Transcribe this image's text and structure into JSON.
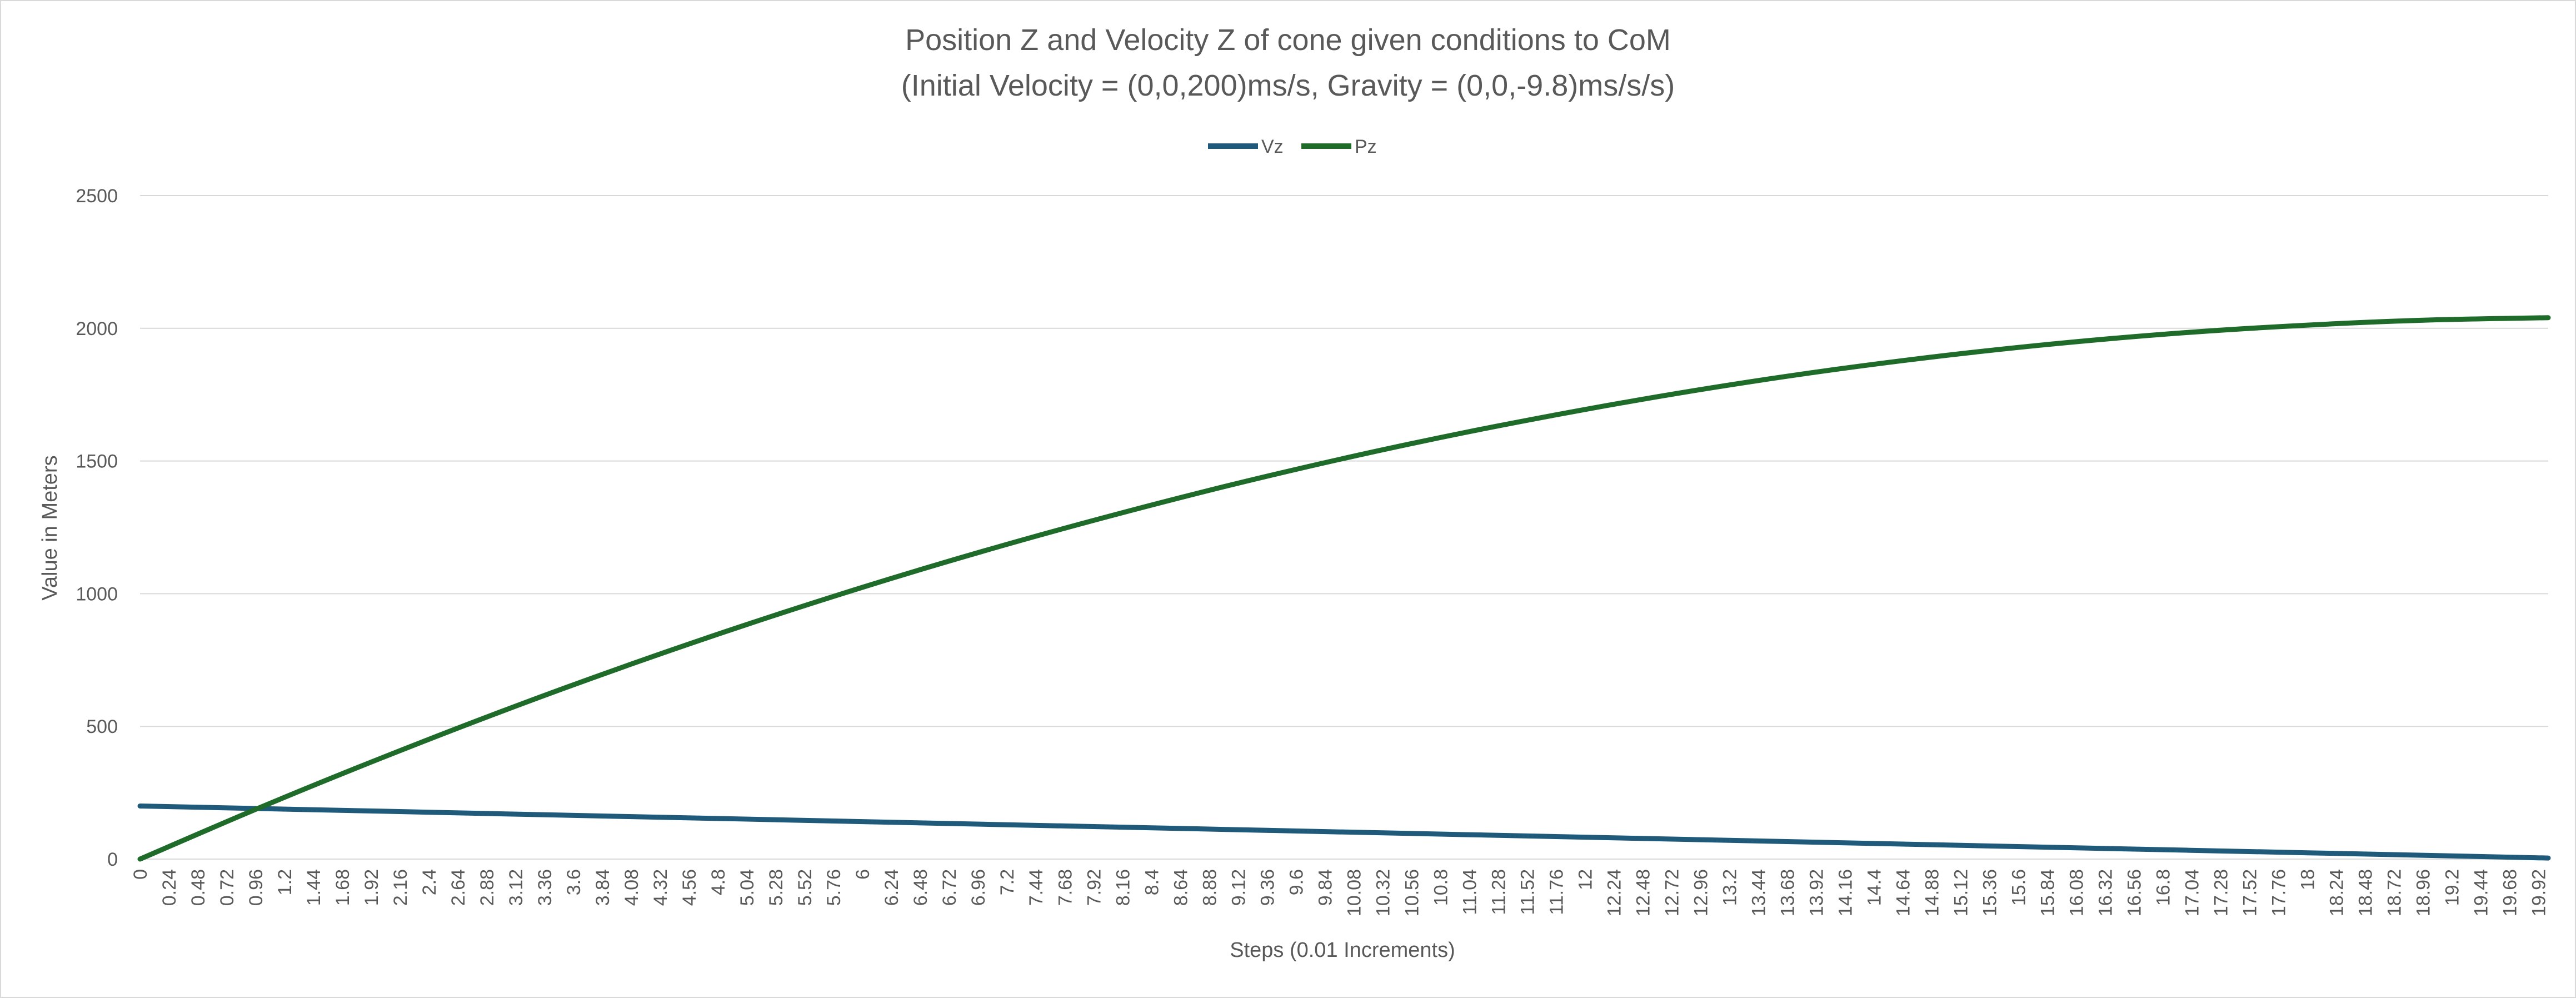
{
  "chart_data": {
    "type": "line",
    "title_line1": "Position Z and Velocity Z of cone given conditions to CoM",
    "title_line2": "(Initial Velocity = (0,0,200)ms/s, Gravity = (0,0,-9.8)ms/s/s)",
    "xlabel": "Steps (0.01 Increments)",
    "ylabel": "Value in Meters",
    "legend_position": "top-center",
    "grid": "horizontal",
    "ylim": [
      0,
      2500
    ],
    "yticks": [
      "0",
      "500",
      "1000",
      "1500",
      "2000",
      "2500"
    ],
    "xlim": [
      0,
      20
    ],
    "xtick_step": 0.24,
    "xtick_labels": [
      "0",
      "0.24",
      "0.48",
      "0.72",
      "0.96",
      "1.2",
      "1.44",
      "1.68",
      "1.92",
      "2.16",
      "2.4",
      "2.64",
      "2.88",
      "3.12",
      "3.36",
      "3.6",
      "3.84",
      "4.08",
      "4.32",
      "4.56",
      "4.8",
      "5.04",
      "5.28",
      "5.52",
      "5.76",
      "6",
      "6.24",
      "6.48",
      "6.72",
      "6.96",
      "7.2",
      "7.44",
      "7.68",
      "7.92",
      "8.16",
      "8.4",
      "8.64",
      "8.88",
      "9.12",
      "9.36",
      "9.6",
      "9.84",
      "10.08",
      "10.32",
      "10.56",
      "10.8",
      "11.04",
      "11.28",
      "11.52",
      "11.76",
      "12",
      "12.24",
      "12.48",
      "12.72",
      "12.96",
      "13.2",
      "13.44",
      "13.68",
      "13.92",
      "14.16",
      "14.4",
      "14.64",
      "14.88",
      "15.12",
      "15.36",
      "15.6",
      "15.84",
      "16.08",
      "16.32",
      "16.56",
      "16.8",
      "17.04",
      "17.28",
      "17.52",
      "17.76",
      "18",
      "18.24",
      "18.48",
      "18.72",
      "18.96",
      "19.2",
      "19.44",
      "19.68",
      "19.92"
    ],
    "series": [
      {
        "name": "Vz",
        "color": "#1f5a7a",
        "x": [
          0,
          2,
          4,
          6,
          8,
          10,
          12,
          14,
          16,
          18,
          20
        ],
        "y": [
          200,
          180.4,
          160.8,
          141.2,
          121.6,
          102,
          82.4,
          62.8,
          43.2,
          23.6,
          4
        ]
      },
      {
        "name": "Pz",
        "color": "#1e6b2a",
        "x": [
          0,
          1,
          2,
          3,
          4,
          5,
          6,
          7,
          8,
          9,
          10,
          11,
          12,
          13,
          14,
          15,
          16,
          17,
          18,
          19,
          20
        ],
        "y": [
          0,
          195,
          380,
          556,
          722,
          878,
          1024,
          1160,
          1286,
          1403,
          1510,
          1607,
          1694,
          1772,
          1840,
          1898,
          1946,
          1984,
          2012,
          2031,
          2040
        ]
      }
    ]
  }
}
